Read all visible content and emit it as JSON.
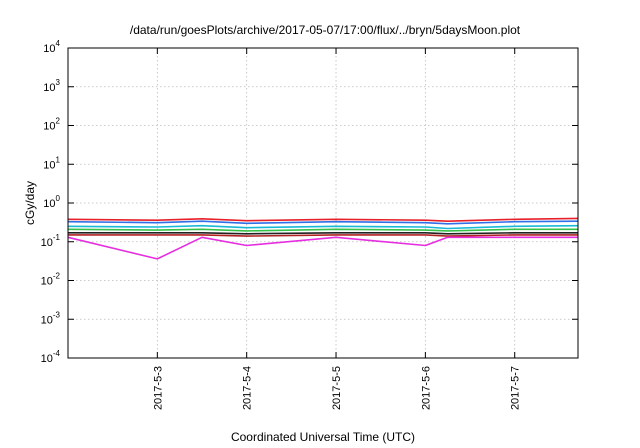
{
  "chart_data": {
    "type": "line",
    "title": "/data/run/goesPlots/archive/2017-05-07/17:00/flux/../bryn/5daysMoon.plot",
    "xlabel": "Coordinated Universal Time (UTC)",
    "ylabel": "cGy/day",
    "yscale": "log",
    "ylim": [
      0.0001,
      10000
    ],
    "xlim": [
      "2017-05-02 00:00",
      "2017-05-07 17:00"
    ],
    "y_ticks": [
      {
        "base": "10",
        "exp": "-4",
        "value": 0.0001
      },
      {
        "base": "10",
        "exp": "-3",
        "value": 0.001
      },
      {
        "base": "10",
        "exp": "-2",
        "value": 0.01
      },
      {
        "base": "10",
        "exp": "-1",
        "value": 0.1
      },
      {
        "base": "10",
        "exp": "0",
        "value": 1
      },
      {
        "base": "10",
        "exp": "1",
        "value": 10
      },
      {
        "base": "10",
        "exp": "2",
        "value": 100
      },
      {
        "base": "10",
        "exp": "3",
        "value": 1000
      },
      {
        "base": "10",
        "exp": "4",
        "value": 10000
      }
    ],
    "x_ticks": [
      {
        "label": "2017-5-3",
        "value": "2017-05-03 00:00"
      },
      {
        "label": "2017-5-4",
        "value": "2017-05-04 00:00"
      },
      {
        "label": "2017-5-5",
        "value": "2017-05-05 00:00"
      },
      {
        "label": "2017-5-6",
        "value": "2017-05-06 00:00"
      },
      {
        "label": "2017-5-7",
        "value": "2017-05-07 00:00"
      }
    ],
    "grid": true,
    "legend": "none",
    "x": [
      "2017-05-02 00:00",
      "2017-05-03 00:00",
      "2017-05-03 12:00",
      "2017-05-04 00:00",
      "2017-05-05 00:00",
      "2017-05-06 00:00",
      "2017-05-06 06:00",
      "2017-05-07 00:00",
      "2017-05-07 17:00"
    ],
    "series": [
      {
        "color": "#e8202a",
        "values": [
          0.38,
          0.36,
          0.39,
          0.35,
          0.38,
          0.36,
          0.34,
          0.38,
          0.4
        ]
      },
      {
        "color": "#2f6fe8",
        "values": [
          0.33,
          0.31,
          0.34,
          0.3,
          0.33,
          0.31,
          0.29,
          0.33,
          0.34
        ]
      },
      {
        "color": "#18b9d6",
        "values": [
          0.25,
          0.24,
          0.26,
          0.23,
          0.25,
          0.24,
          0.22,
          0.25,
          0.26
        ]
      },
      {
        "color": "#36c24a",
        "values": [
          0.21,
          0.2,
          0.21,
          0.19,
          0.21,
          0.2,
          0.19,
          0.21,
          0.21
        ]
      },
      {
        "color": "#222222",
        "values": [
          0.17,
          0.17,
          0.17,
          0.16,
          0.17,
          0.17,
          0.16,
          0.17,
          0.17
        ]
      },
      {
        "color": "#b22222",
        "values": [
          0.15,
          0.15,
          0.15,
          0.14,
          0.15,
          0.15,
          0.14,
          0.15,
          0.15
        ]
      },
      {
        "color": "#e62ee0",
        "values": [
          0.13,
          0.036,
          0.13,
          0.08,
          0.13,
          0.08,
          0.13,
          0.13,
          0.13
        ]
      }
    ]
  }
}
